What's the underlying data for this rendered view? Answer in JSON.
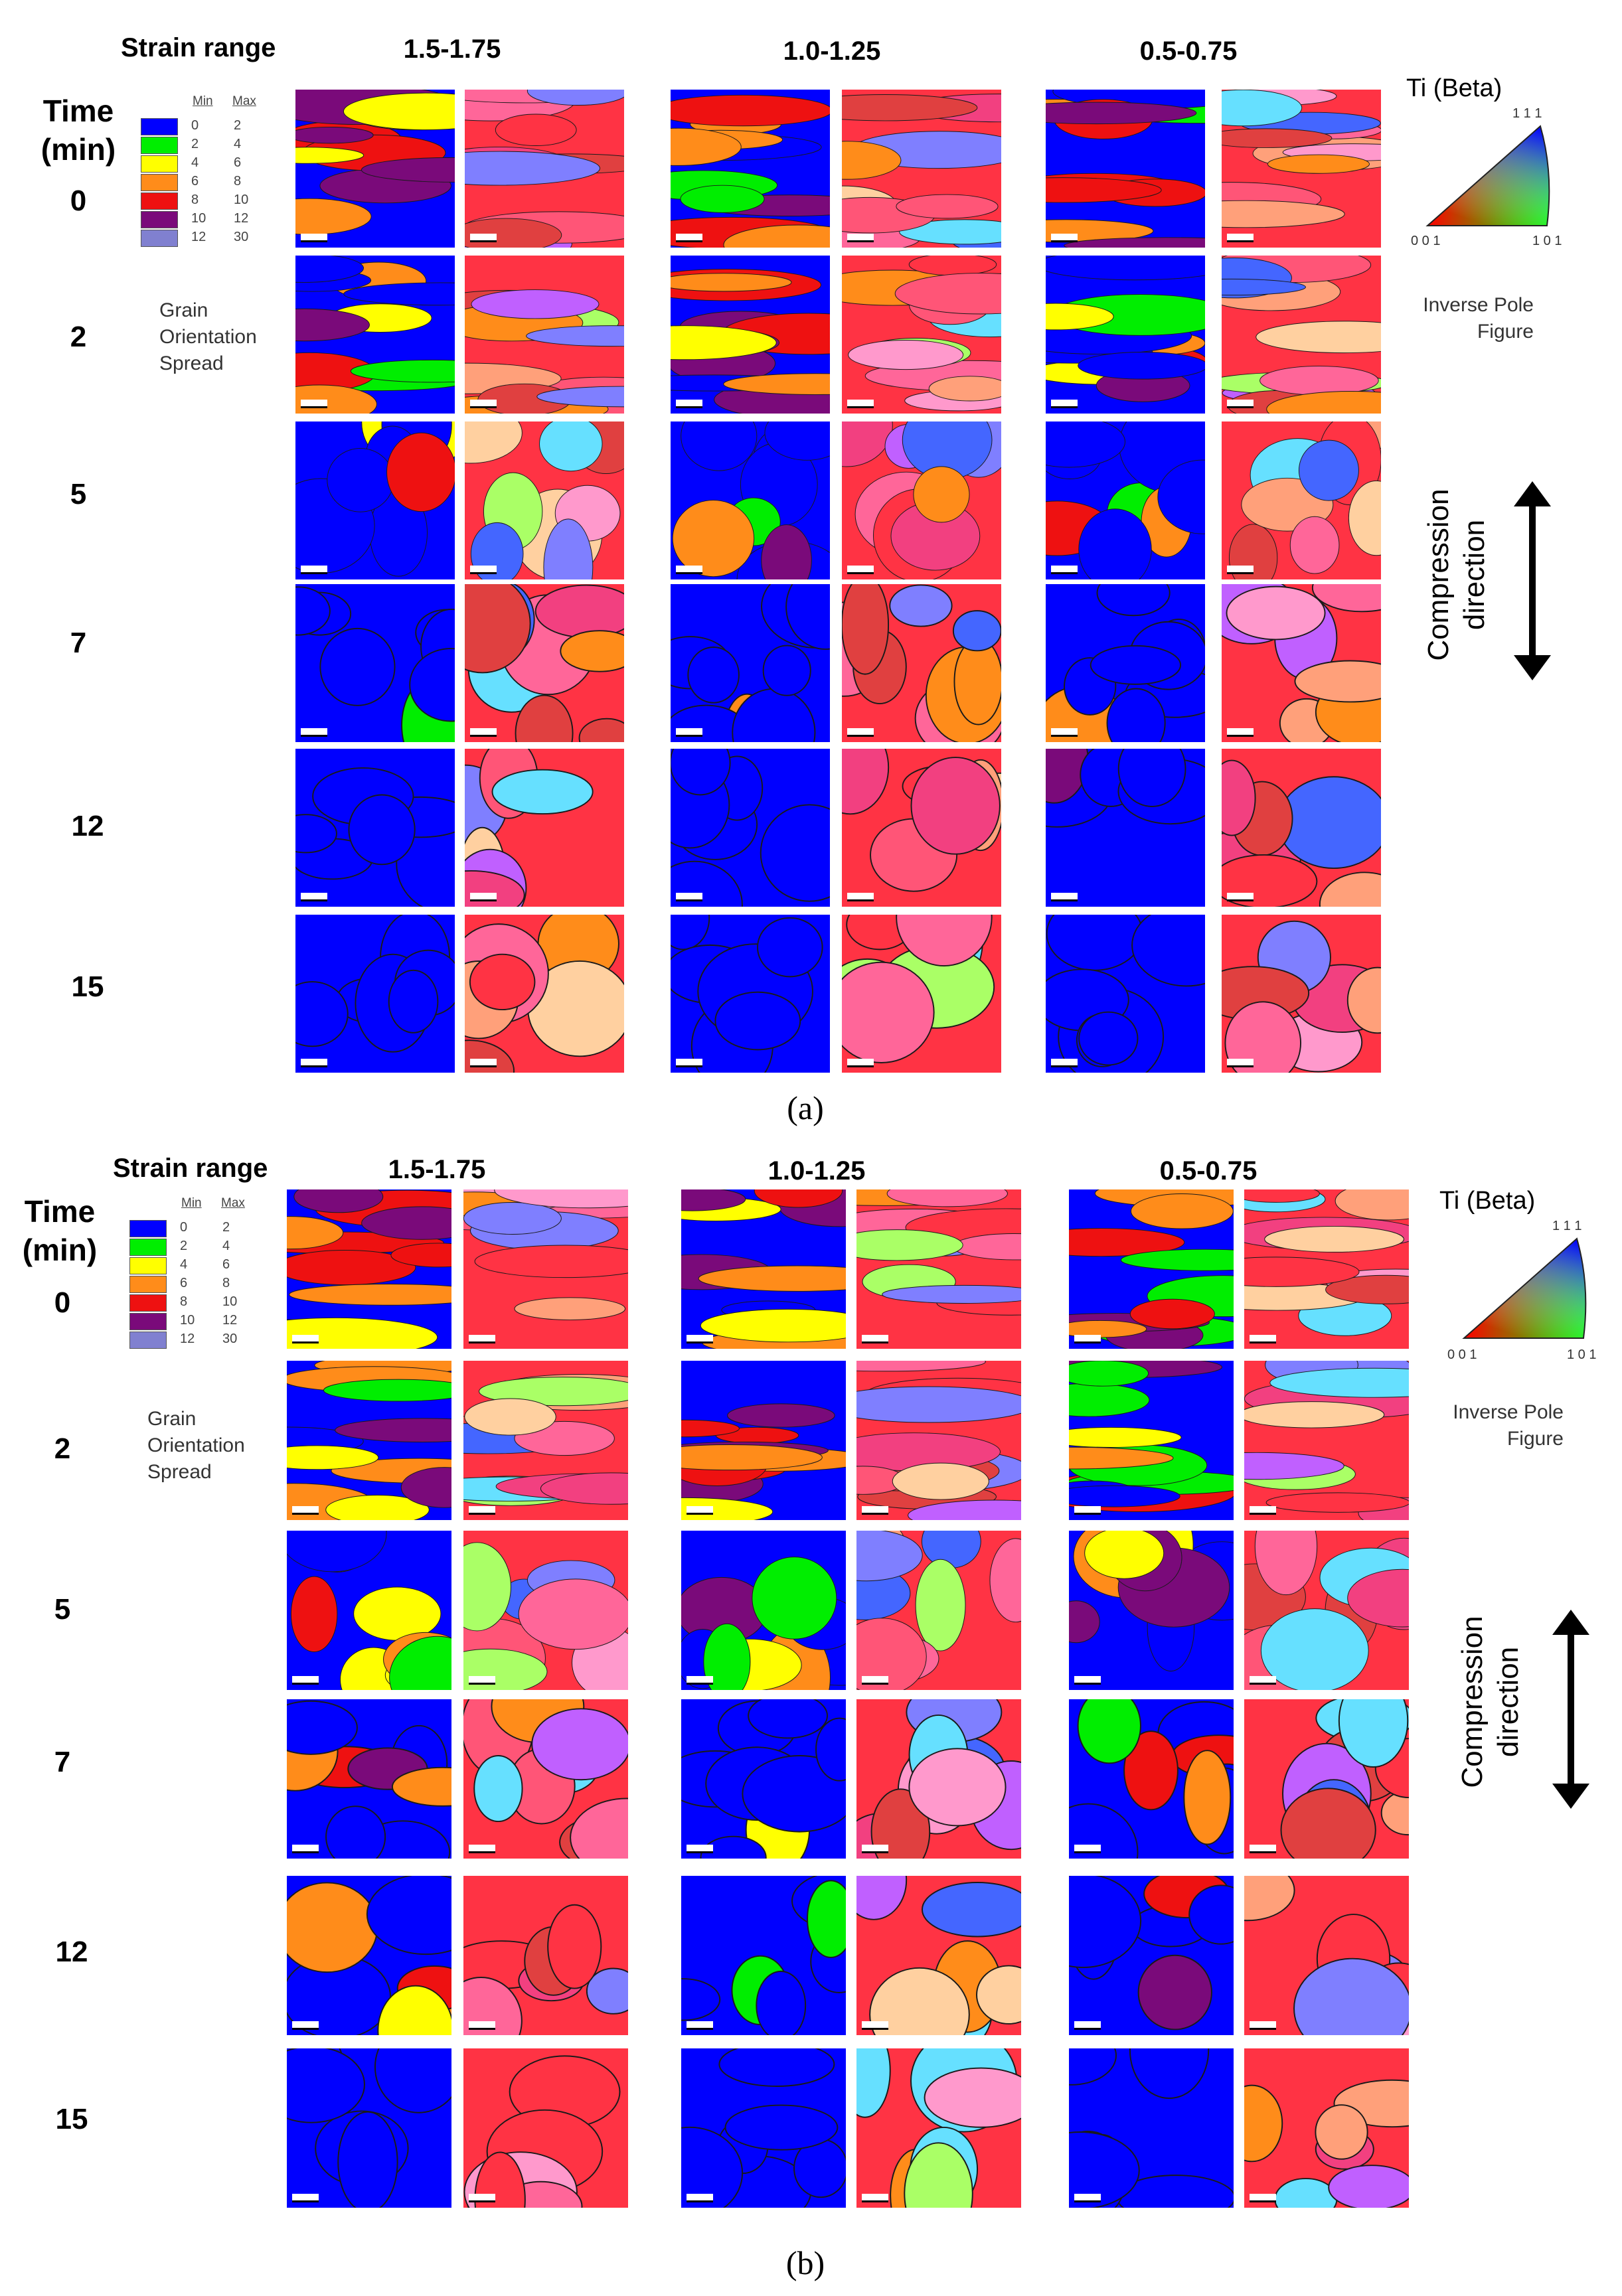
{
  "panels": [
    {
      "id": "a",
      "caption": "(a)",
      "strain_label": "Strain range",
      "time_label": "Time\n(min)",
      "columns": [
        "1.5-1.75",
        "1.0-1.25",
        "0.5-0.75"
      ],
      "rows": [
        "0",
        "2",
        "5",
        "7",
        "12",
        "15"
      ],
      "legend": {
        "min_header": "Min",
        "max_header": "Max",
        "entries": [
          {
            "min": "0",
            "max": "2",
            "color": "#0000ff"
          },
          {
            "min": "2",
            "max": "4",
            "color": "#00ee00"
          },
          {
            "min": "4",
            "max": "6",
            "color": "#ffff00"
          },
          {
            "min": "6",
            "max": "8",
            "color": "#ff8c1a"
          },
          {
            "min": "8",
            "max": "10",
            "color": "#ee1111"
          },
          {
            "min": "10",
            "max": "12",
            "color": "#7a0a7a"
          },
          {
            "min": "12",
            "max": "30",
            "color": "#8080d0"
          }
        ],
        "caption": "Grain\nOrientation\nSpread"
      },
      "ipf": {
        "title": "Ti (Beta)",
        "corner_top": "1 1 1",
        "corner_left": "0 0 1",
        "corner_right": "1 0 1",
        "caption": "Inverse Pole\nFigure"
      },
      "compression_label": "Compression\ndirection"
    },
    {
      "id": "b",
      "caption": "(b)",
      "strain_label": "Strain range",
      "time_label": "Time\n(min)",
      "columns": [
        "1.5-1.75",
        "1.0-1.25",
        "0.5-0.75"
      ],
      "rows": [
        "0",
        "2",
        "5",
        "7",
        "12",
        "15"
      ],
      "legend": {
        "min_header": "Min",
        "max_header": "Max",
        "entries": [
          {
            "min": "0",
            "max": "2",
            "color": "#0000ff"
          },
          {
            "min": "2",
            "max": "4",
            "color": "#00ee00"
          },
          {
            "min": "4",
            "max": "6",
            "color": "#ffff00"
          },
          {
            "min": "6",
            "max": "8",
            "color": "#ff8c1a"
          },
          {
            "min": "8",
            "max": "10",
            "color": "#ee1111"
          },
          {
            "min": "10",
            "max": "12",
            "color": "#7a0a7a"
          },
          {
            "min": "12",
            "max": "30",
            "color": "#8080d0"
          }
        ],
        "caption": "Grain\nOrientation\nSpread"
      },
      "ipf": {
        "title": "Ti (Beta)",
        "corner_top": "1 1 1",
        "corner_left": "0 0 1",
        "corner_right": "1 0 1",
        "caption": "Inverse Pole\nFigure"
      },
      "compression_label": "Compression\ndirection"
    }
  ]
}
